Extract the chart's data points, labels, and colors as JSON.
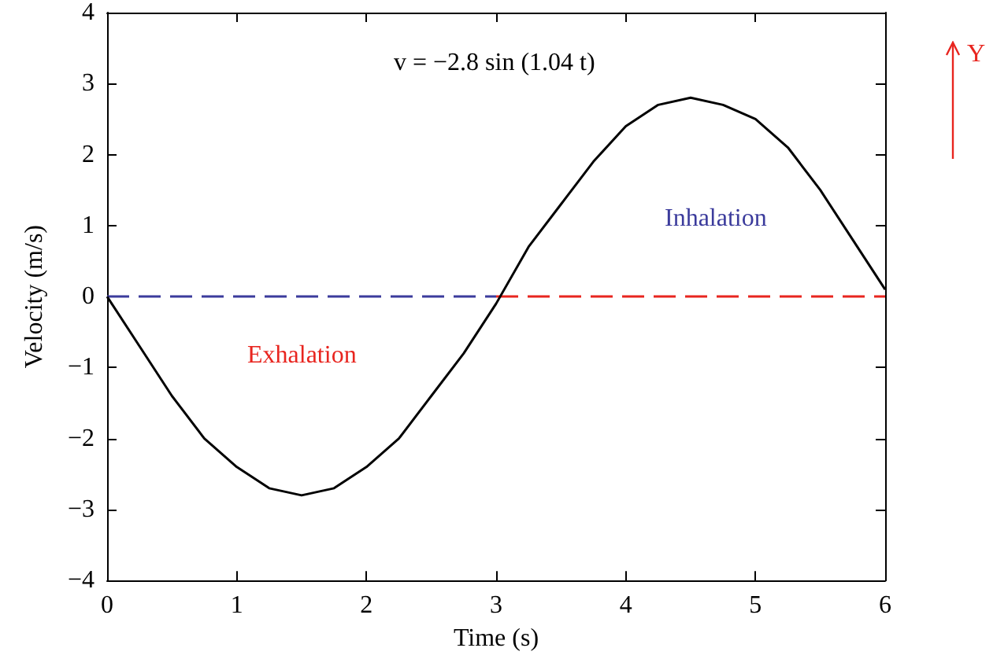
{
  "chart_data": {
    "type": "line",
    "xlabel": "Time (s)",
    "ylabel": "Velocity (m/s)",
    "xlim": [
      0,
      6
    ],
    "xticks": [
      0,
      1,
      2,
      3,
      4,
      5,
      6
    ],
    "ylim": [
      -4,
      4
    ],
    "yticks": [
      {
        "value": -4,
        "label": "−4"
      },
      {
        "value": -3,
        "label": "−3"
      },
      {
        "value": -2,
        "label": "−2"
      },
      {
        "value": -1,
        "label": "−1"
      },
      0,
      1,
      2,
      3,
      4
    ],
    "grid": false,
    "series": [
      {
        "color": "#000000",
        "line_style": "solid",
        "x": [
          0,
          0.25,
          0.5,
          0.75,
          1,
          1.25,
          1.5,
          1.75,
          2,
          2.25,
          2.5,
          2.75,
          3,
          3.25,
          3.5,
          3.75,
          4,
          4.25,
          4.5,
          4.75,
          5,
          5.25,
          5.5,
          5.75,
          6
        ],
        "values": [
          0,
          -0.7,
          -1.4,
          -2.0,
          -2.4,
          -2.7,
          -2.8,
          -2.7,
          -2.4,
          -2.0,
          -1.4,
          -0.8,
          -0.1,
          0.7,
          1.3,
          1.9,
          2.4,
          2.7,
          2.8,
          2.7,
          2.5,
          2.1,
          1.5,
          0.8,
          0.1
        ]
      },
      {
        "color": "#3b3b9c",
        "line_style": "dashed",
        "x": [
          0,
          3
        ],
        "values": [
          0,
          0
        ]
      },
      {
        "color": "#e8251f",
        "line_style": "dashed",
        "x": [
          3,
          6
        ],
        "values": [
          0,
          0
        ]
      }
    ],
    "annotations": [
      "v = −2.8 sin (1.04 t)",
      "Exhalation",
      "Inhalation",
      "Y"
    ]
  }
}
